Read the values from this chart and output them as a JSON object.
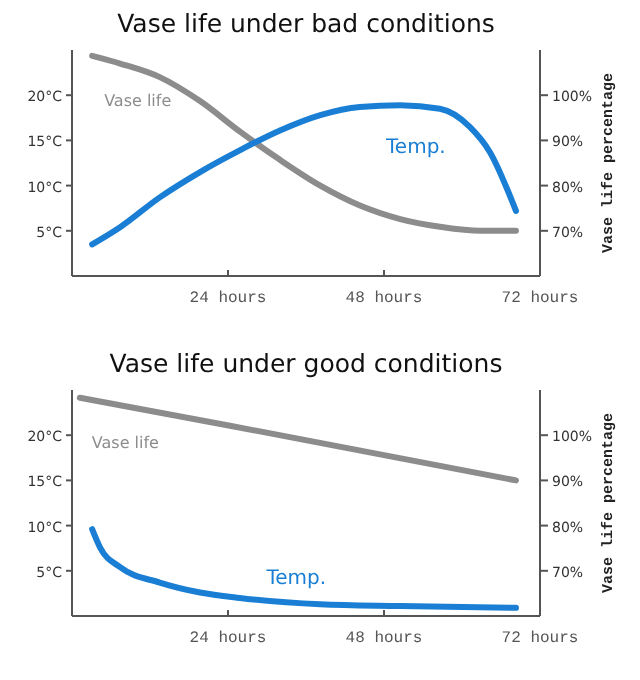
{
  "chart_data": [
    {
      "type": "line",
      "title": "Vase life under bad conditions",
      "y2label": "Vase life percentage",
      "xlim": [
        0,
        72
      ],
      "xticks": [
        {
          "value": 24,
          "label": "24 hours"
        },
        {
          "value": 48,
          "label": "48 hours"
        },
        {
          "value": 72,
          "label": "72 hours"
        }
      ],
      "ylim": [
        0,
        25
      ],
      "yticks": [
        {
          "value": 5,
          "label": "5°C"
        },
        {
          "value": 10,
          "label": "10°C"
        },
        {
          "value": 15,
          "label": "15°C"
        },
        {
          "value": 20,
          "label": "20°C"
        }
      ],
      "y2lim": [
        60,
        110
      ],
      "y2ticks": [
        {
          "value": 70,
          "label": "70%"
        },
        {
          "value": 80,
          "label": "80%"
        },
        {
          "value": 90,
          "label": "90%"
        },
        {
          "value": 100,
          "label": "100%"
        }
      ],
      "grid": false,
      "series": [
        {
          "name": "Vase life",
          "color": "#8c8c8c",
          "axis": "y2",
          "x": [
            3.1,
            7.4,
            13.5,
            19.7,
            25.8,
            32,
            38.2,
            44.3,
            50.5,
            56.6,
            62.8,
            68.3
          ],
          "values": [
            108.7,
            107,
            104,
            98.7,
            92,
            85.7,
            80,
            75.6,
            72.6,
            70.9,
            70,
            70
          ]
        },
        {
          "name": "Temp.",
          "color": "#1a7fd4",
          "x": [
            3.1,
            7.4,
            13.5,
            19.7,
            25.8,
            32,
            38.2,
            44.3,
            50.5,
            56.6,
            61.2,
            64.3,
            68.3
          ],
          "values": [
            3.5,
            5.4,
            8.7,
            11.5,
            13.9,
            16.1,
            17.8,
            18.7,
            18.9,
            18.5,
            16.5,
            13.7,
            7.2
          ]
        }
      ]
    },
    {
      "type": "line",
      "title": "Vase life under good conditions",
      "y2label": "Vase life percentage",
      "xlim": [
        0,
        72
      ],
      "xticks": [
        {
          "value": 24,
          "label": "24 hours"
        },
        {
          "value": 48,
          "label": "48 hours"
        },
        {
          "value": 72,
          "label": "72 hours"
        }
      ],
      "ylim": [
        0,
        25
      ],
      "yticks": [
        {
          "value": 5,
          "label": "5°C"
        },
        {
          "value": 10,
          "label": "10°C"
        },
        {
          "value": 15,
          "label": "15°C"
        },
        {
          "value": 20,
          "label": "20°C"
        }
      ],
      "y2lim": [
        60,
        110
      ],
      "y2ticks": [
        {
          "value": 70,
          "label": "70%"
        },
        {
          "value": 80,
          "label": "80%"
        },
        {
          "value": 90,
          "label": "90%"
        },
        {
          "value": 100,
          "label": "100%"
        }
      ],
      "grid": false,
      "series": [
        {
          "name": "Vase life",
          "color": "#8c8c8c",
          "axis": "y2",
          "x": [
            1.2,
            24.3,
            68.3
          ],
          "values": [
            108.3,
            102.1,
            90
          ]
        },
        {
          "name": "Temp.",
          "color": "#1a7fd4",
          "x": [
            3.1,
            4.3,
            7.4,
            13.5,
            19.7,
            25.8,
            38.2,
            50.5,
            68.3
          ],
          "values": [
            9.6,
            7.6,
            5.4,
            3.7,
            2.6,
            2,
            1.3,
            1.1,
            0.9
          ]
        }
      ]
    }
  ]
}
